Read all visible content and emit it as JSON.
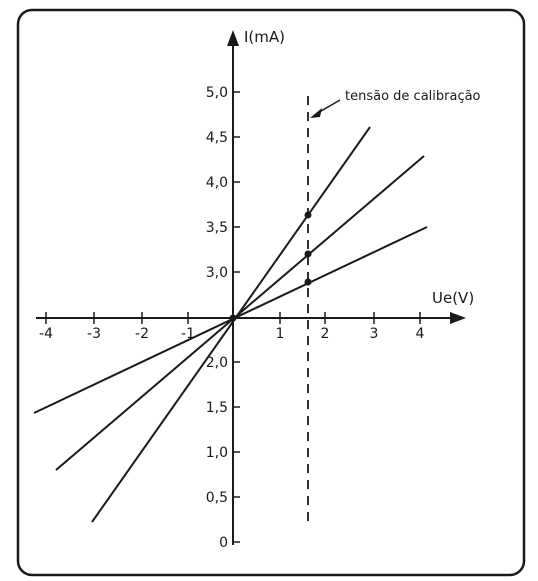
{
  "diagram": {
    "y_axis_label": "I(mA)",
    "x_axis_label": "Ue(V)",
    "annotation": "tensão de calibração",
    "x_tick_labels": [
      "-4",
      "-3",
      "-2",
      "-1",
      "1",
      "2",
      "3",
      "4"
    ],
    "y_tick_labels": [
      "5,0",
      "4,5",
      "4,0",
      "3,5",
      "3,0",
      "2,0",
      "1,5",
      "1,0",
      "0,5",
      "0"
    ],
    "calibration_voltage": 1.6,
    "lines": [
      {
        "name": "",
        "slope_mA_per_V": 1.0
      },
      {
        "name": "",
        "slope_mA_per_V": 0.7
      },
      {
        "name": "",
        "slope_mA_per_V": 0.45
      }
    ]
  }
}
